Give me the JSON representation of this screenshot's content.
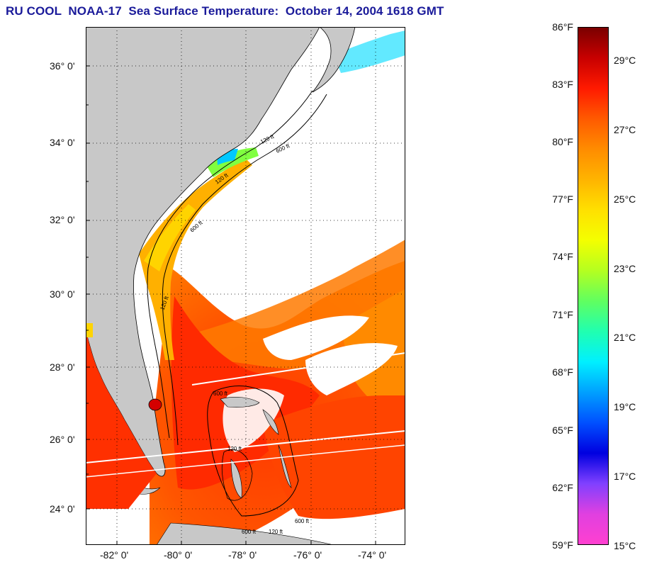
{
  "title": "RU COOL  NOAA-17  Sea Surface Temperature:  October 14, 2004 1618 GMT",
  "map": {
    "lat_labels": [
      "36° 0'",
      "34° 0'",
      "32° 0'",
      "30° 0'",
      "28° 0'",
      "26° 0'",
      "24° 0'"
    ],
    "lon_labels": [
      "-82° 0'",
      "-80° 0'",
      "-78° 0'",
      "-76° 0'",
      "-74° 0'"
    ],
    "contour_labels": [
      "120 ft",
      "600 ft",
      "120 ft",
      "600 ft",
      "120 ft",
      "600 ft",
      "120 ft",
      "600 ft",
      "120 ft",
      "600 ft"
    ],
    "colors": {
      "land": "#c8c8c8",
      "cloud": "#ffffff"
    }
  },
  "colorbar": {
    "fahrenheit": [
      "86°F",
      "83°F",
      "80°F",
      "77°F",
      "74°F",
      "71°F",
      "68°F",
      "65°F",
      "62°F",
      "59°F"
    ],
    "celsius": [
      "29°C",
      "27°C",
      "25°C",
      "23°C",
      "21°C",
      "19°C",
      "17°C",
      "15°C"
    ],
    "gradient": [
      "#7a0000",
      "#c80000",
      "#ff1a00",
      "#ff5a00",
      "#ff8c00",
      "#ffb400",
      "#ffe000",
      "#f4ff00",
      "#b4ff20",
      "#60ff60",
      "#20ffb0",
      "#00f0ff",
      "#00a0ff",
      "#0050ff",
      "#0000e0",
      "#8040ff",
      "#e040e0",
      "#ff40d0"
    ]
  }
}
